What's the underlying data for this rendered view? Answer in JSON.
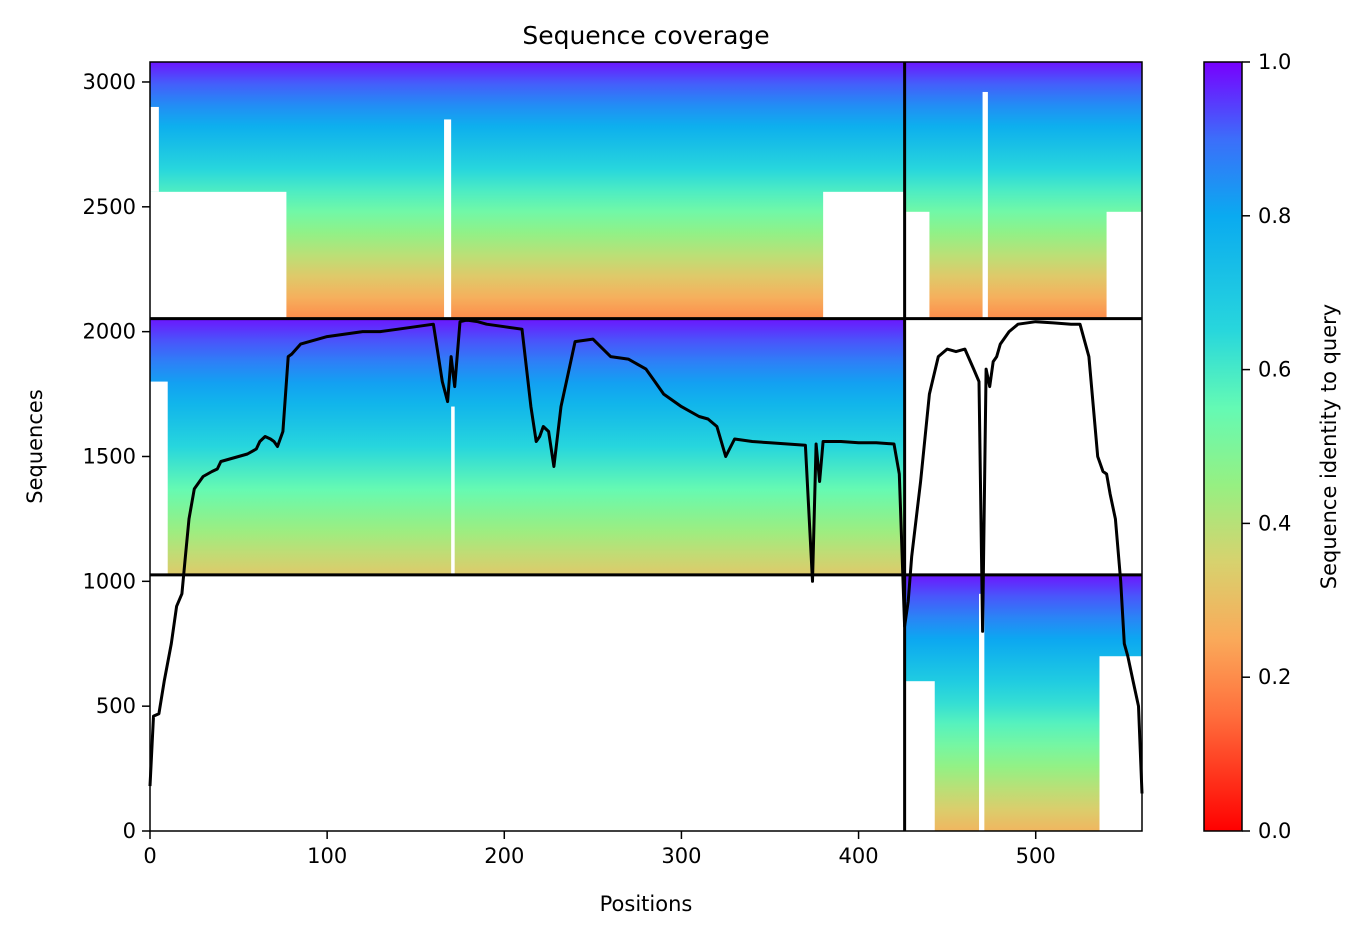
{
  "chart_data": {
    "type": "heatmap",
    "title": "Sequence coverage",
    "xlabel": "Positions",
    "ylabel": "Sequences",
    "xlim": [
      0,
      560
    ],
    "ylim": [
      0,
      3080
    ],
    "xticks": [
      0,
      100,
      200,
      300,
      400,
      500
    ],
    "yticks": [
      0,
      500,
      1000,
      1500,
      2000,
      2500,
      3000
    ],
    "colorbar": {
      "label": "Sequence identity to query",
      "range": [
        0.0,
        1.0
      ],
      "ticks": [
        "0.0",
        "0.2",
        "0.4",
        "0.6",
        "0.8",
        "1.0"
      ],
      "colormap": "rainbow_r"
    },
    "chain_boundary_x": 426,
    "block_boundaries_y": [
      1026,
      2052
    ],
    "blocks": [
      {
        "name": "block-top-left",
        "x": [
          0,
          426
        ],
        "y": [
          2052,
          3080
        ],
        "identity_top": 0.98,
        "identity_bottom": 0.2
      },
      {
        "name": "block-top-right",
        "x": [
          426,
          560
        ],
        "y": [
          2052,
          3080
        ],
        "identity_top": 0.98,
        "identity_bottom": 0.2
      },
      {
        "name": "block-middle-left",
        "x": [
          0,
          426
        ],
        "y": [
          1026,
          2052
        ],
        "identity_top": 0.98,
        "identity_bottom": 0.33
      },
      {
        "name": "block-bottom-right",
        "x": [
          426,
          560
        ],
        "y": [
          0,
          1026
        ],
        "identity_top": 0.98,
        "identity_bottom": 0.28
      }
    ],
    "coverage_line": {
      "x": [
        0,
        2,
        5,
        8,
        12,
        15,
        18,
        20,
        22,
        25,
        30,
        35,
        38,
        40,
        45,
        50,
        55,
        60,
        62,
        65,
        68,
        70,
        72,
        75,
        78,
        80,
        85,
        90,
        95,
        100,
        110,
        120,
        130,
        140,
        150,
        160,
        165,
        168,
        170,
        172,
        175,
        178,
        180,
        185,
        190,
        200,
        210,
        215,
        218,
        220,
        222,
        225,
        228,
        232,
        240,
        250,
        260,
        270,
        280,
        285,
        290,
        300,
        310,
        315,
        320,
        325,
        330,
        340,
        350,
        360,
        370,
        374,
        376,
        378,
        380,
        390,
        400,
        410,
        420,
        423,
        426,
        428,
        430,
        435,
        440,
        445,
        450,
        455,
        460,
        465,
        468,
        470,
        472,
        474,
        476,
        478,
        480,
        485,
        490,
        500,
        510,
        520,
        525,
        530,
        535,
        538,
        540,
        542,
        545,
        548,
        550,
        552,
        555,
        558,
        560
      ],
      "y": [
        180,
        460,
        470,
        600,
        750,
        900,
        950,
        1100,
        1250,
        1370,
        1420,
        1440,
        1450,
        1480,
        1490,
        1500,
        1510,
        1530,
        1560,
        1580,
        1570,
        1560,
        1540,
        1600,
        1900,
        1910,
        1950,
        1960,
        1970,
        1980,
        1990,
        2000,
        2000,
        2010,
        2020,
        2030,
        1800,
        1720,
        1900,
        1780,
        2040,
        2045,
        2045,
        2040,
        2030,
        2020,
        2010,
        1700,
        1560,
        1580,
        1620,
        1600,
        1460,
        1700,
        1960,
        1970,
        1900,
        1890,
        1850,
        1800,
        1750,
        1700,
        1660,
        1650,
        1620,
        1500,
        1570,
        1560,
        1555,
        1550,
        1545,
        1000,
        1550,
        1400,
        1560,
        1560,
        1555,
        1555,
        1550,
        1430,
        820,
        920,
        1100,
        1400,
        1750,
        1900,
        1930,
        1920,
        1930,
        1850,
        1800,
        800,
        1850,
        1780,
        1880,
        1900,
        1950,
        2000,
        2030,
        2040,
        2035,
        2030,
        2030,
        1900,
        1500,
        1440,
        1430,
        1350,
        1250,
        1000,
        750,
        700,
        600,
        500,
        150
      ]
    }
  }
}
